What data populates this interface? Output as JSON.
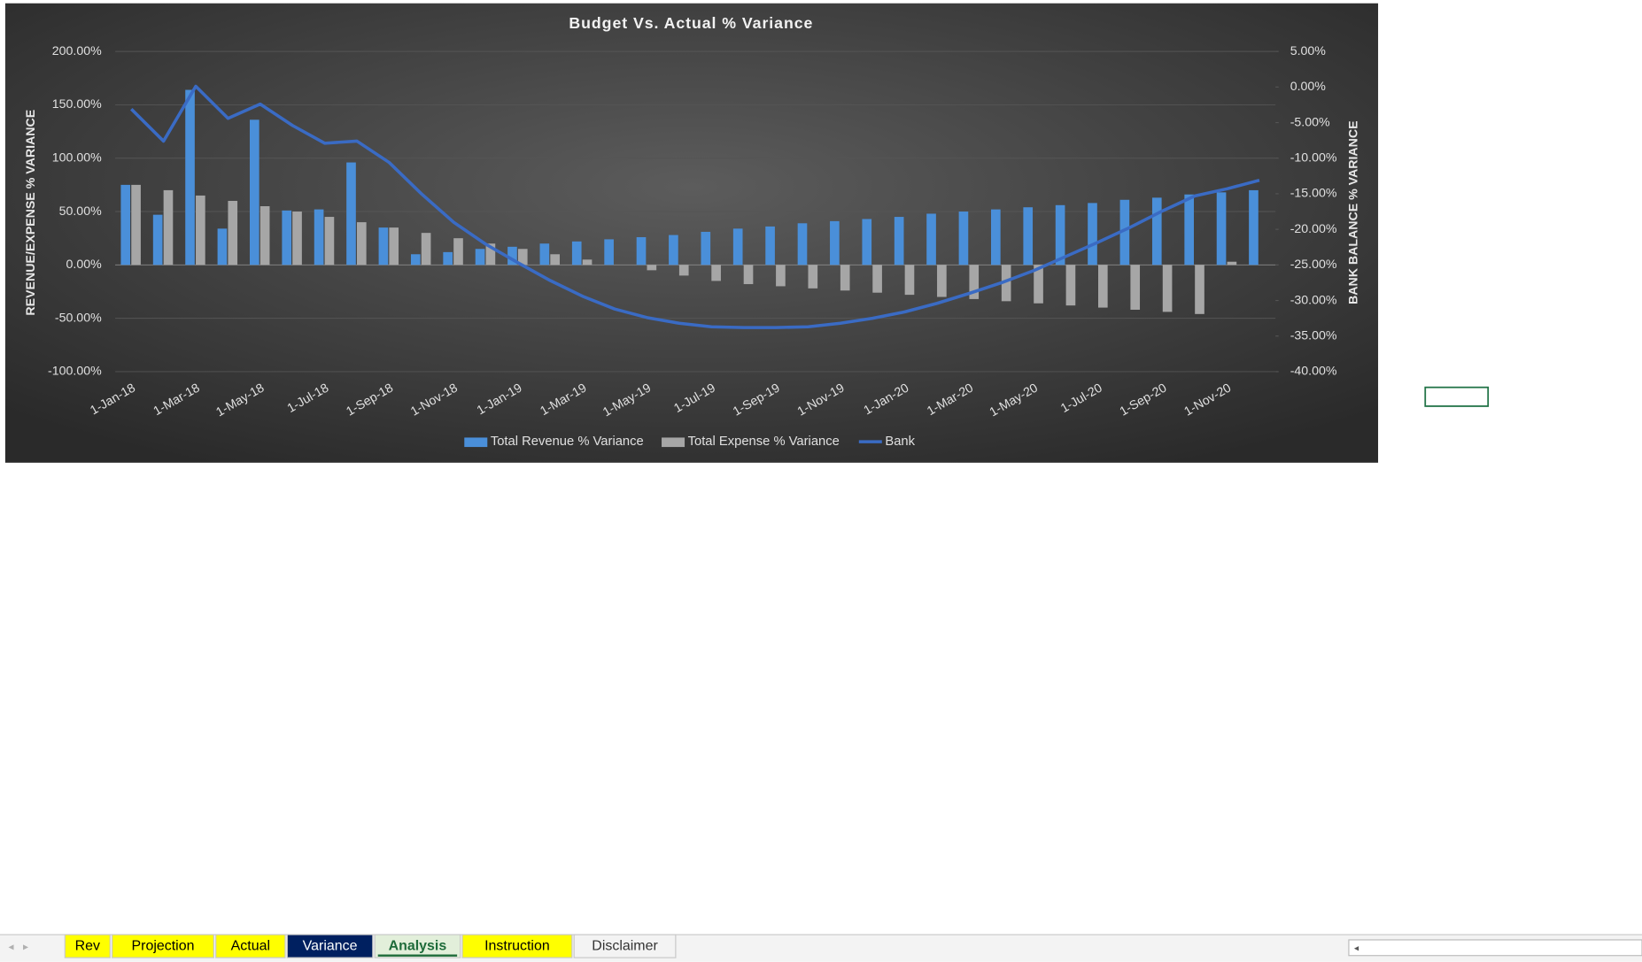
{
  "chart_data": {
    "type": "bar_line",
    "title": "Budget Vs. Actual % Variance",
    "y_label": "REVENUE/EXPENSE % VARIANCE",
    "y2_label": "BANK BALANCE % VARIANCE",
    "categories": [
      "1-Jan-18",
      null,
      "1-Mar-18",
      null,
      "1-May-18",
      null,
      "1-Jul-18",
      null,
      "1-Sep-18",
      null,
      "1-Nov-18",
      null,
      "1-Jan-19",
      null,
      "1-Mar-19",
      null,
      "1-May-19",
      null,
      "1-Jul-19",
      null,
      "1-Sep-19",
      null,
      "1-Nov-19",
      null,
      "1-Jan-20",
      null,
      "1-Mar-20",
      null,
      "1-May-20",
      null,
      "1-Jul-20",
      null,
      "1-Sep-20",
      null,
      "1-Nov-20",
      null
    ],
    "series": [
      {
        "name": "Total Revenue % Variance",
        "type": "bar",
        "color": "#4a8fd9",
        "values": [
          75,
          47,
          164,
          34,
          136,
          51,
          52,
          96,
          35,
          10,
          12,
          15,
          17,
          20,
          22,
          24,
          26,
          28,
          31,
          34,
          36,
          39,
          41,
          43,
          45,
          48,
          50,
          52,
          54,
          56,
          58,
          61,
          63,
          66,
          68,
          70
        ]
      },
      {
        "name": "Total Expense % Variance",
        "type": "bar",
        "color": "#a6a6a6",
        "values": [
          75,
          70,
          65,
          60,
          55,
          50,
          45,
          40,
          35,
          30,
          25,
          20,
          15,
          10,
          5,
          0,
          -5,
          -10,
          -15,
          -18,
          -20,
          -22,
          -24,
          -26,
          -28,
          -30,
          -32,
          -34,
          -36,
          -38,
          -40,
          -42,
          -44,
          -46,
          3,
          0
        ]
      },
      {
        "name": "Bank",
        "type": "line",
        "axis": "y2",
        "color": "#3a6bc4",
        "values": [
          -3.1,
          -7.6,
          0.1,
          -4.4,
          -2.4,
          -5.4,
          -7.9,
          -7.6,
          -10.6,
          -15,
          -19,
          -22.1,
          -24.7,
          -27.2,
          -29.4,
          -31.2,
          -32.4,
          -33.2,
          -33.7,
          -33.8,
          -33.8,
          -33.7,
          -33.2,
          -32.5,
          -31.6,
          -30.4,
          -29,
          -27.5,
          -25.8,
          -23.8,
          -21.8,
          -19.7,
          -17.4,
          -15.3,
          -14.3,
          -13.1
        ]
      }
    ],
    "ylim": [
      -100,
      200
    ],
    "yticks": [
      {
        "value": -100,
        "label": "-100.00%"
      },
      {
        "value": -50,
        "label": "-50.00%"
      },
      {
        "value": 0,
        "label": "0.00%"
      },
      {
        "value": 50,
        "label": "50.00%"
      },
      {
        "value": 100,
        "label": "100.00%"
      },
      {
        "value": 150,
        "label": "150.00%"
      },
      {
        "value": 200,
        "label": "200.00%"
      }
    ],
    "y2lim": [
      -40,
      5
    ],
    "y2ticks": [
      {
        "value": -40,
        "label": "-40.00%"
      },
      {
        "value": -35,
        "label": "-35.00%"
      },
      {
        "value": -30,
        "label": "-30.00%"
      },
      {
        "value": -25,
        "label": "-25.00%"
      },
      {
        "value": -20,
        "label": "-20.00%"
      },
      {
        "value": -15,
        "label": "-15.00%"
      },
      {
        "value": -10,
        "label": "-10.00%"
      },
      {
        "value": -5,
        "label": "-5.00%"
      },
      {
        "value": 0,
        "label": "0.00%"
      },
      {
        "value": 5,
        "label": "5.00%"
      }
    ],
    "grid": true,
    "legend": "bottom"
  },
  "sheet_tabs": [
    "Rev",
    "Projection",
    "Actual",
    "Variance",
    "Analysis",
    "Instruction",
    "Disclaimer"
  ]
}
